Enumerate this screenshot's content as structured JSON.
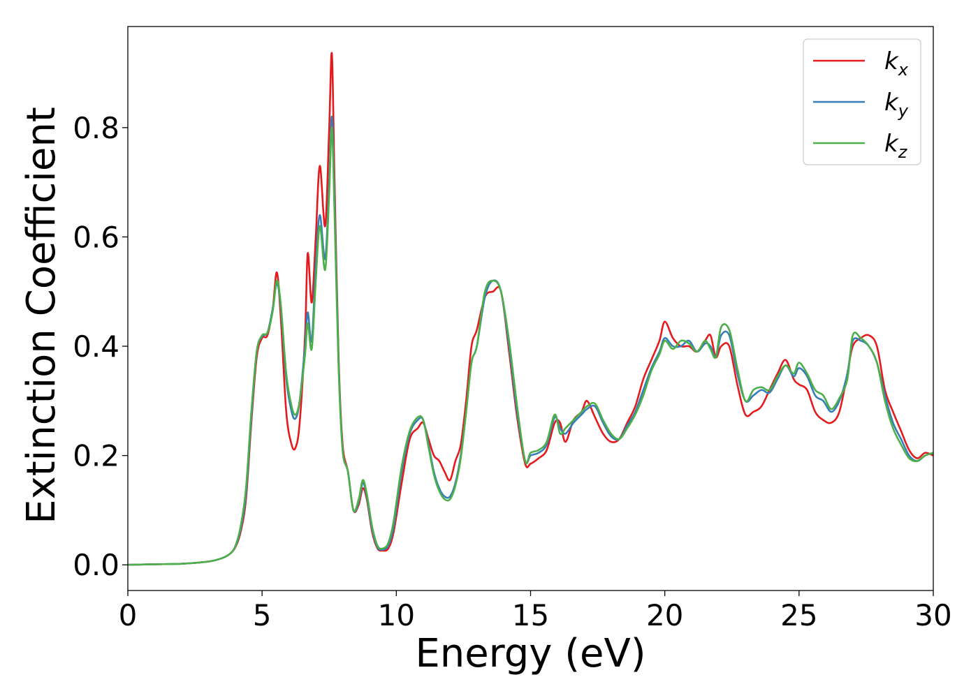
{
  "chart_data": {
    "type": "line",
    "xlabel": "Energy (eV)",
    "ylabel": "Extinction Coefficient",
    "xlim": [
      0,
      30
    ],
    "ylim": [
      -0.047,
      0.985
    ],
    "xticks": [
      0,
      5,
      10,
      15,
      20,
      25,
      30
    ],
    "xtick_labels": [
      "0",
      "5",
      "10",
      "15",
      "20",
      "25",
      "30"
    ],
    "yticks": [
      0.0,
      0.2,
      0.4,
      0.6,
      0.8
    ],
    "ytick_labels": [
      "0.0",
      "0.2",
      "0.4",
      "0.6",
      "0.8"
    ],
    "grid": false,
    "legend_position": "top-right",
    "series": [
      {
        "name": "k",
        "subscript": "x",
        "color": "#e41a1c",
        "x": [
          0,
          1,
          2,
          3,
          3.5,
          3.8,
          4.0,
          4.2,
          4.4,
          4.6,
          4.8,
          5.0,
          5.2,
          5.4,
          5.55,
          5.7,
          5.9,
          6.1,
          6.25,
          6.4,
          6.6,
          6.7,
          6.85,
          7.0,
          7.15,
          7.35,
          7.5,
          7.6,
          7.7,
          7.85,
          8.0,
          8.2,
          8.4,
          8.6,
          8.75,
          8.9,
          9.1,
          9.3,
          9.5,
          9.7,
          9.9,
          10.2,
          10.5,
          10.8,
          11.0,
          11.2,
          11.4,
          11.6,
          11.8,
          12.0,
          12.2,
          12.4,
          12.6,
          12.8,
          13.0,
          13.3,
          13.6,
          13.9,
          14.2,
          14.5,
          14.8,
          15.0,
          15.3,
          15.6,
          15.9,
          16.1,
          16.3,
          16.6,
          16.9,
          17.1,
          17.4,
          17.7,
          18.0,
          18.3,
          18.6,
          18.9,
          19.2,
          19.5,
          19.8,
          20.0,
          20.3,
          20.6,
          20.9,
          21.2,
          21.5,
          21.7,
          21.9,
          22.1,
          22.4,
          22.7,
          23.0,
          23.3,
          23.6,
          23.9,
          24.2,
          24.5,
          24.8,
          25.0,
          25.3,
          25.6,
          25.9,
          26.2,
          26.5,
          26.8,
          27.0,
          27.3,
          27.6,
          27.9,
          28.2,
          28.5,
          28.8,
          29.1,
          29.4,
          29.7,
          30.0
        ],
        "y": [
          0.0,
          0.001,
          0.002,
          0.006,
          0.012,
          0.02,
          0.032,
          0.06,
          0.12,
          0.26,
          0.38,
          0.415,
          0.42,
          0.47,
          0.535,
          0.45,
          0.28,
          0.22,
          0.215,
          0.26,
          0.42,
          0.57,
          0.48,
          0.6,
          0.73,
          0.62,
          0.8,
          0.935,
          0.7,
          0.38,
          0.22,
          0.17,
          0.1,
          0.11,
          0.14,
          0.12,
          0.06,
          0.03,
          0.026,
          0.03,
          0.06,
          0.15,
          0.23,
          0.25,
          0.26,
          0.23,
          0.2,
          0.19,
          0.17,
          0.155,
          0.19,
          0.22,
          0.3,
          0.4,
          0.43,
          0.49,
          0.5,
          0.5,
          0.39,
          0.27,
          0.185,
          0.185,
          0.195,
          0.21,
          0.26,
          0.26,
          0.225,
          0.265,
          0.28,
          0.3,
          0.27,
          0.24,
          0.225,
          0.23,
          0.26,
          0.29,
          0.34,
          0.375,
          0.41,
          0.445,
          0.415,
          0.4,
          0.4,
          0.39,
          0.41,
          0.42,
          0.38,
          0.4,
          0.4,
          0.33,
          0.275,
          0.28,
          0.29,
          0.32,
          0.35,
          0.375,
          0.34,
          0.33,
          0.32,
          0.28,
          0.265,
          0.26,
          0.28,
          0.35,
          0.4,
          0.415,
          0.42,
          0.4,
          0.32,
          0.28,
          0.245,
          0.21,
          0.195,
          0.205,
          0.2
        ]
      },
      {
        "name": "k",
        "subscript": "y",
        "color": "#377eb8",
        "x": [
          0,
          1,
          2,
          3,
          3.5,
          3.8,
          4.0,
          4.2,
          4.4,
          4.6,
          4.8,
          5.0,
          5.2,
          5.4,
          5.55,
          5.7,
          5.9,
          6.1,
          6.25,
          6.4,
          6.6,
          6.7,
          6.85,
          7.0,
          7.15,
          7.35,
          7.5,
          7.6,
          7.7,
          7.85,
          8.0,
          8.2,
          8.4,
          8.6,
          8.75,
          8.9,
          9.1,
          9.3,
          9.5,
          9.7,
          9.9,
          10.2,
          10.5,
          10.8,
          11.0,
          11.2,
          11.4,
          11.6,
          11.8,
          12.0,
          12.2,
          12.4,
          12.6,
          12.8,
          13.0,
          13.3,
          13.6,
          13.9,
          14.2,
          14.5,
          14.8,
          15.0,
          15.3,
          15.6,
          15.9,
          16.1,
          16.3,
          16.6,
          16.9,
          17.1,
          17.4,
          17.7,
          18.0,
          18.3,
          18.6,
          18.9,
          19.2,
          19.5,
          19.8,
          20.0,
          20.3,
          20.6,
          20.9,
          21.2,
          21.5,
          21.7,
          21.9,
          22.1,
          22.4,
          22.7,
          23.0,
          23.3,
          23.6,
          23.9,
          24.2,
          24.5,
          24.8,
          25.0,
          25.3,
          25.6,
          25.9,
          26.2,
          26.5,
          26.8,
          27.0,
          27.3,
          27.6,
          27.9,
          28.2,
          28.5,
          28.8,
          29.1,
          29.4,
          29.7,
          30.0
        ],
        "y": [
          0.0,
          0.001,
          0.002,
          0.006,
          0.012,
          0.02,
          0.033,
          0.065,
          0.13,
          0.27,
          0.39,
          0.418,
          0.425,
          0.47,
          0.515,
          0.47,
          0.34,
          0.28,
          0.268,
          0.3,
          0.4,
          0.462,
          0.41,
          0.55,
          0.64,
          0.56,
          0.7,
          0.82,
          0.66,
          0.37,
          0.21,
          0.17,
          0.1,
          0.115,
          0.15,
          0.125,
          0.065,
          0.032,
          0.028,
          0.035,
          0.07,
          0.17,
          0.24,
          0.265,
          0.265,
          0.22,
          0.17,
          0.14,
          0.125,
          0.125,
          0.15,
          0.2,
          0.28,
          0.37,
          0.4,
          0.49,
          0.52,
          0.5,
          0.4,
          0.28,
          0.19,
          0.2,
          0.205,
          0.22,
          0.27,
          0.25,
          0.24,
          0.26,
          0.275,
          0.285,
          0.29,
          0.26,
          0.235,
          0.23,
          0.255,
          0.28,
          0.32,
          0.36,
          0.39,
          0.415,
          0.4,
          0.4,
          0.41,
          0.39,
          0.405,
          0.4,
          0.38,
          0.42,
          0.42,
          0.35,
          0.3,
          0.31,
          0.32,
          0.315,
          0.34,
          0.365,
          0.345,
          0.36,
          0.345,
          0.31,
          0.3,
          0.28,
          0.3,
          0.35,
          0.41,
          0.41,
          0.4,
          0.37,
          0.31,
          0.26,
          0.23,
          0.2,
          0.19,
          0.2,
          0.205
        ]
      },
      {
        "name": "k",
        "subscript": "z",
        "color": "#4daf4a",
        "x": [
          0,
          1,
          2,
          3,
          3.5,
          3.8,
          4.0,
          4.2,
          4.4,
          4.6,
          4.8,
          5.0,
          5.2,
          5.4,
          5.55,
          5.7,
          5.9,
          6.1,
          6.25,
          6.4,
          6.6,
          6.7,
          6.85,
          7.0,
          7.15,
          7.35,
          7.5,
          7.6,
          7.7,
          7.85,
          8.0,
          8.2,
          8.4,
          8.6,
          8.75,
          8.9,
          9.1,
          9.3,
          9.5,
          9.7,
          9.9,
          10.2,
          10.5,
          10.8,
          11.0,
          11.2,
          11.4,
          11.6,
          11.8,
          12.0,
          12.2,
          12.4,
          12.6,
          12.8,
          13.0,
          13.3,
          13.6,
          13.9,
          14.2,
          14.5,
          14.8,
          15.0,
          15.3,
          15.6,
          15.9,
          16.1,
          16.3,
          16.6,
          16.9,
          17.1,
          17.4,
          17.7,
          18.0,
          18.3,
          18.6,
          18.9,
          19.2,
          19.5,
          19.8,
          20.0,
          20.3,
          20.6,
          20.9,
          21.2,
          21.5,
          21.7,
          21.9,
          22.1,
          22.4,
          22.7,
          23.0,
          23.3,
          23.6,
          23.9,
          24.2,
          24.5,
          24.8,
          25.0,
          25.3,
          25.6,
          25.9,
          26.2,
          26.5,
          26.8,
          27.0,
          27.3,
          27.6,
          27.9,
          28.2,
          28.5,
          28.8,
          29.1,
          29.4,
          29.7,
          30.0
        ],
        "y": [
          0.0,
          0.001,
          0.002,
          0.006,
          0.012,
          0.02,
          0.034,
          0.07,
          0.14,
          0.28,
          0.39,
          0.42,
          0.425,
          0.465,
          0.52,
          0.475,
          0.35,
          0.29,
          0.275,
          0.3,
          0.385,
          0.442,
          0.395,
          0.52,
          0.62,
          0.54,
          0.68,
          0.8,
          0.64,
          0.36,
          0.21,
          0.17,
          0.1,
          0.12,
          0.155,
          0.13,
          0.07,
          0.035,
          0.03,
          0.04,
          0.08,
          0.18,
          0.245,
          0.27,
          0.265,
          0.215,
          0.165,
          0.135,
          0.12,
          0.12,
          0.145,
          0.195,
          0.28,
          0.37,
          0.4,
          0.5,
          0.52,
          0.5,
          0.41,
          0.29,
          0.19,
          0.205,
          0.21,
          0.225,
          0.275,
          0.24,
          0.25,
          0.265,
          0.28,
          0.29,
          0.295,
          0.265,
          0.24,
          0.23,
          0.25,
          0.275,
          0.31,
          0.355,
          0.385,
          0.41,
          0.395,
          0.41,
          0.405,
          0.39,
          0.41,
          0.395,
          0.38,
          0.435,
          0.43,
          0.36,
          0.3,
          0.32,
          0.325,
          0.32,
          0.345,
          0.365,
          0.35,
          0.37,
          0.35,
          0.32,
          0.31,
          0.285,
          0.305,
          0.34,
          0.42,
          0.415,
          0.4,
          0.37,
          0.3,
          0.25,
          0.22,
          0.195,
          0.19,
          0.2,
          0.205
        ]
      }
    ]
  }
}
